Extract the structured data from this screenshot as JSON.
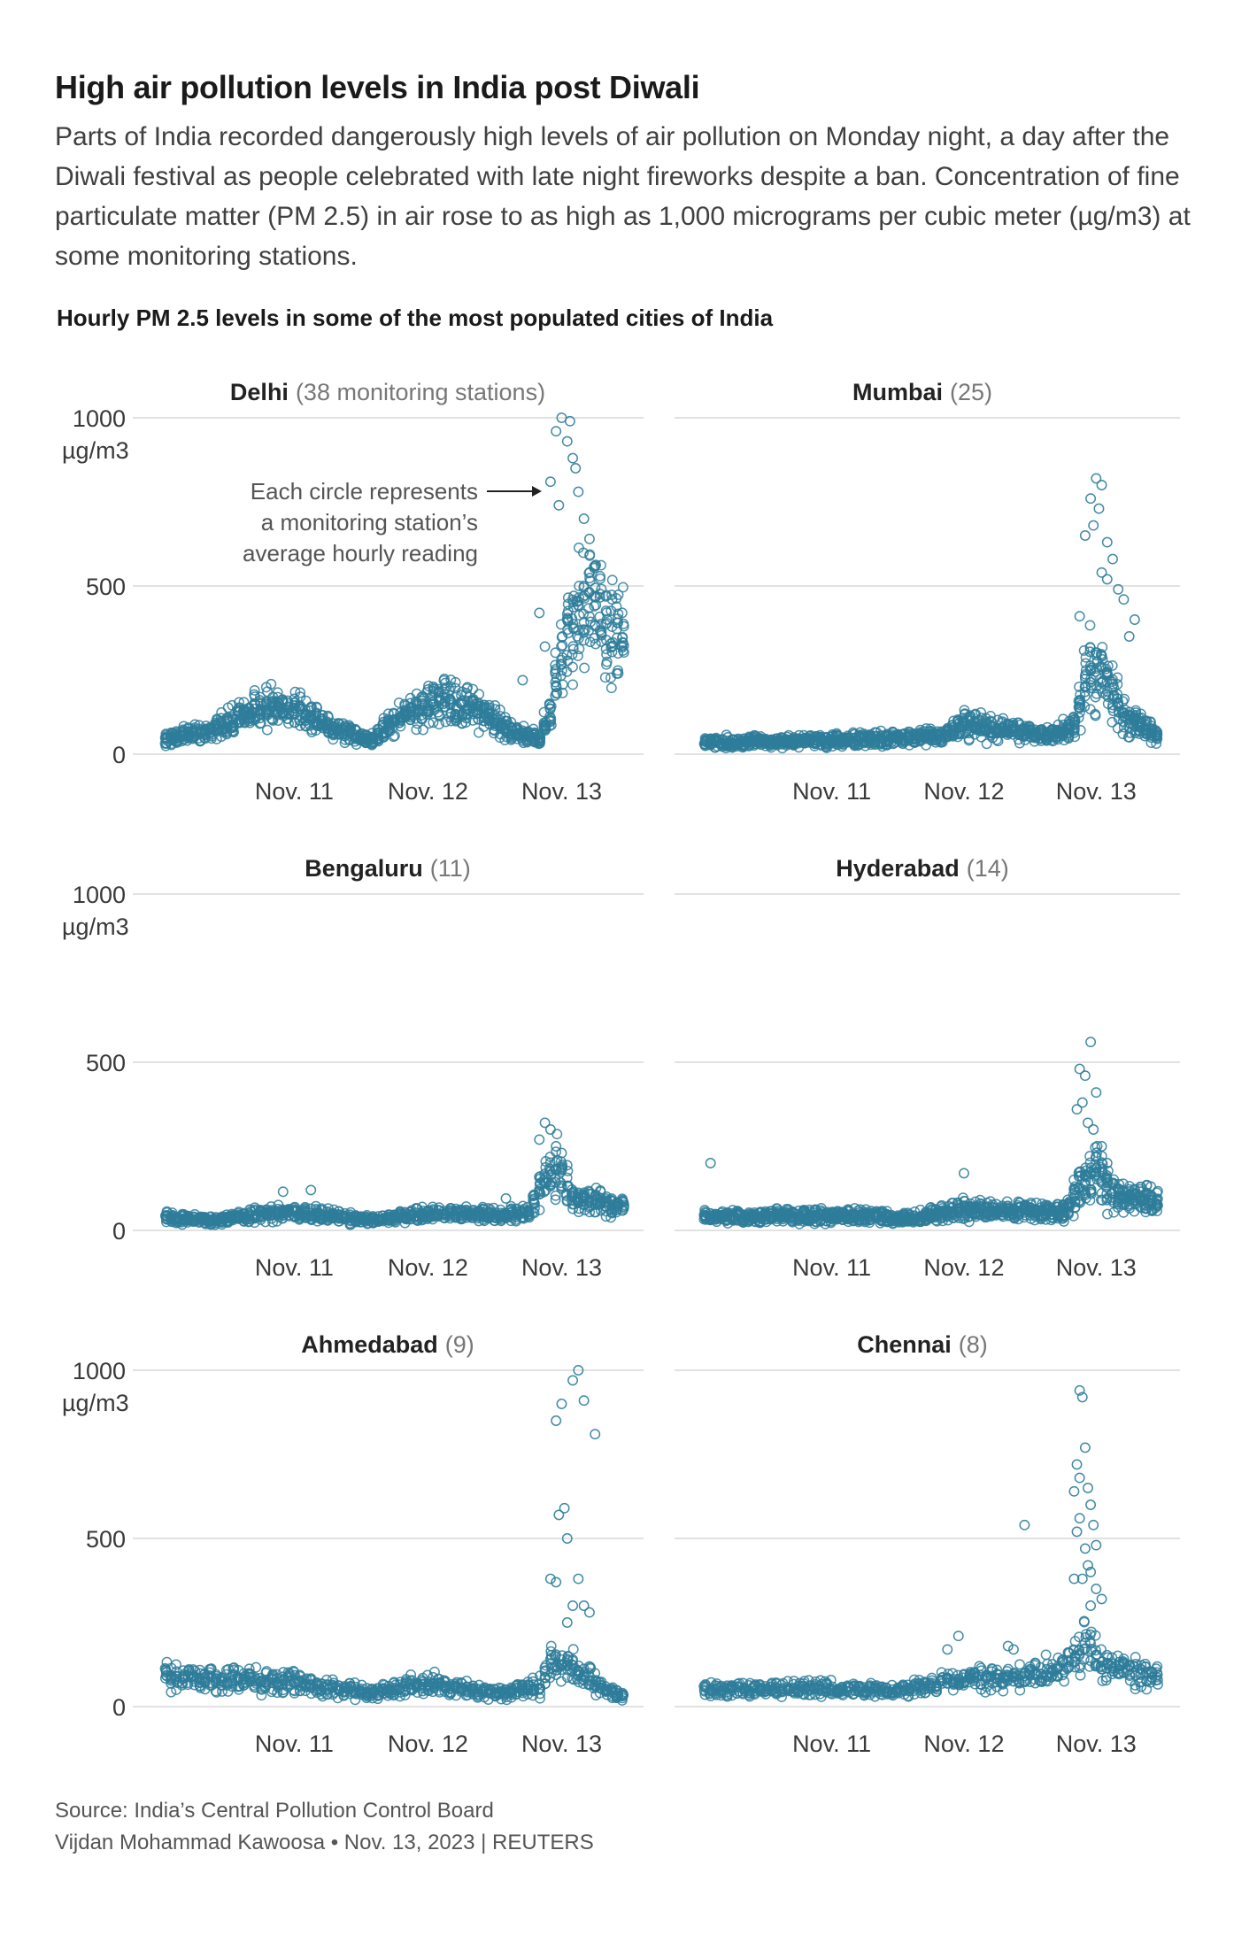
{
  "headline": "High air pollution levels in India post Diwali",
  "dek": "Parts of India recorded dangerously high levels of air pollution on Monday night, a day after the Diwali festival as people celebrated with late night fireworks despite a ban. Concentration of fine particulate matter (PM 2.5) in air rose to as high as 1,000 micrograms per cubic meter (µg/m3) at some monitoring stations.",
  "chart_title": "Hourly PM 2.5 levels in some of the most populated cities of India",
  "source": "Source: India’s Central Pollution Control Board",
  "credit": "Vijdan Mohammad Kawoosa • Nov. 13, 2023 | REUTERS",
  "colors": {
    "dot": "#2e7d9a",
    "grid": "#d9d9d9",
    "text": "#222222",
    "muted": "#777777"
  },
  "annotation": [
    "Each circle represents",
    "a monitoring station’s",
    "average hourly reading"
  ],
  "chart_data": [
    {
      "type": "scatter",
      "city": "Delhi",
      "subtitle": "(38 monitoring stations)",
      "stations": 38,
      "ylim": [
        0,
        1000
      ],
      "y_ticks": [
        0,
        500,
        1000
      ],
      "y_unit": "µg/m3",
      "x_ticks": [
        "Nov. 11",
        "Nov. 12",
        "Nov. 13"
      ],
      "xlabel": "",
      "ylabel": "µg/m3",
      "x_range_hours": [
        -25,
        60
      ],
      "tick_hours": [
        0,
        24,
        48
      ],
      "baseline": [
        [
          -23,
          45
        ],
        [
          -15,
          70
        ],
        [
          -5,
          140
        ],
        [
          2,
          120
        ],
        [
          8,
          70
        ],
        [
          14,
          45
        ],
        [
          20,
          120
        ],
        [
          27,
          160
        ],
        [
          33,
          130
        ],
        [
          40,
          60
        ],
        [
          44,
          45
        ],
        [
          46,
          120
        ],
        [
          48,
          310
        ],
        [
          52,
          450
        ],
        [
          56,
          390
        ],
        [
          59,
          340
        ]
      ],
      "spread": 0.55,
      "extremes": [
        [
          46,
          810
        ],
        [
          47,
          960
        ],
        [
          48,
          1000
        ],
        [
          49,
          930
        ],
        [
          50,
          880
        ],
        [
          51,
          780
        ],
        [
          52,
          700
        ],
        [
          53,
          640
        ],
        [
          54,
          560
        ],
        [
          47.5,
          740
        ],
        [
          49.5,
          990
        ],
        [
          50.5,
          850
        ],
        [
          44,
          420
        ],
        [
          45,
          320
        ],
        [
          41,
          220
        ]
      ]
    },
    {
      "type": "scatter",
      "city": "Mumbai",
      "subtitle": "(25)",
      "stations": 25,
      "ylim": [
        0,
        1000
      ],
      "y_ticks": [
        0,
        500,
        1000
      ],
      "y_unit": "µg/m3",
      "x_ticks": [
        "Nov. 11",
        "Nov. 12",
        "Nov. 13"
      ],
      "xlabel": "",
      "ylabel": "µg/m3",
      "x_range_hours": [
        -25,
        60
      ],
      "tick_hours": [
        0,
        24,
        48
      ],
      "baseline": [
        [
          -23,
          35
        ],
        [
          0,
          40
        ],
        [
          20,
          55
        ],
        [
          24,
          95
        ],
        [
          30,
          75
        ],
        [
          40,
          55
        ],
        [
          44,
          90
        ],
        [
          47,
          260
        ],
        [
          50,
          230
        ],
        [
          53,
          110
        ],
        [
          59,
          60
        ]
      ],
      "spread": 0.6,
      "extremes": [
        [
          48,
          820
        ],
        [
          49,
          800
        ],
        [
          47,
          760
        ],
        [
          48.5,
          730
        ],
        [
          47.5,
          680
        ],
        [
          46,
          650
        ],
        [
          50,
          630
        ],
        [
          51,
          580
        ],
        [
          52,
          490
        ],
        [
          53,
          460
        ],
        [
          55,
          400
        ],
        [
          49,
          540
        ],
        [
          50,
          520
        ],
        [
          45,
          410
        ],
        [
          54,
          350
        ]
      ]
    },
    {
      "type": "scatter",
      "city": "Bengaluru",
      "subtitle": "(11)",
      "stations": 11,
      "ylim": [
        0,
        1000
      ],
      "y_ticks": [
        0,
        500,
        1000
      ],
      "y_unit": "µg/m3",
      "x_ticks": [
        "Nov. 11",
        "Nov. 12",
        "Nov. 13"
      ],
      "xlabel": "",
      "ylabel": "µg/m3",
      "x_range_hours": [
        -25,
        60
      ],
      "tick_hours": [
        0,
        24,
        48
      ],
      "baseline": [
        [
          -23,
          40
        ],
        [
          -15,
          30
        ],
        [
          0,
          55
        ],
        [
          8,
          40
        ],
        [
          14,
          30
        ],
        [
          24,
          50
        ],
        [
          36,
          45
        ],
        [
          42,
          50
        ],
        [
          45,
          150
        ],
        [
          47,
          200
        ],
        [
          50,
          90
        ],
        [
          59,
          70
        ]
      ],
      "spread": 0.6,
      "extremes": [
        [
          45,
          320
        ],
        [
          46,
          300
        ],
        [
          44,
          270
        ],
        [
          47,
          250
        ],
        [
          48,
          230
        ],
        [
          -2,
          115
        ],
        [
          3,
          120
        ],
        [
          38,
          95
        ]
      ]
    },
    {
      "type": "scatter",
      "city": "Hyderabad",
      "subtitle": "(14)",
      "stations": 14,
      "ylim": [
        0,
        1000
      ],
      "y_ticks": [
        0,
        500,
        1000
      ],
      "y_unit": "µg/m3",
      "x_ticks": [
        "Nov. 11",
        "Nov. 12",
        "Nov. 13"
      ],
      "xlabel": "",
      "ylabel": "µg/m3",
      "x_range_hours": [
        -25,
        60
      ],
      "tick_hours": [
        0,
        24,
        48
      ],
      "baseline": [
        [
          -23,
          40
        ],
        [
          0,
          45
        ],
        [
          14,
          35
        ],
        [
          24,
          60
        ],
        [
          36,
          55
        ],
        [
          42,
          50
        ],
        [
          45,
          120
        ],
        [
          48,
          180
        ],
        [
          52,
          100
        ],
        [
          59,
          90
        ]
      ],
      "spread": 0.65,
      "extremes": [
        [
          -22,
          200
        ],
        [
          47,
          560
        ],
        [
          45,
          480
        ],
        [
          46,
          460
        ],
        [
          48,
          410
        ],
        [
          45.5,
          380
        ],
        [
          44.5,
          360
        ],
        [
          46.5,
          320
        ],
        [
          47.5,
          300
        ],
        [
          24,
          170
        ],
        [
          49,
          250
        ],
        [
          50,
          200
        ]
      ]
    },
    {
      "type": "scatter",
      "city": "Ahmedabad",
      "subtitle": "(9)",
      "stations": 9,
      "ylim": [
        0,
        1000
      ],
      "y_ticks": [
        0,
        500,
        1000
      ],
      "y_unit": "µg/m3",
      "x_ticks": [
        "Nov. 11",
        "Nov. 12",
        "Nov. 13"
      ],
      "xlabel": "",
      "ylabel": "µg/m3",
      "x_range_hours": [
        -25,
        60
      ],
      "tick_hours": [
        0,
        24,
        48
      ],
      "baseline": [
        [
          -23,
          90
        ],
        [
          -10,
          80
        ],
        [
          0,
          70
        ],
        [
          14,
          40
        ],
        [
          24,
          70
        ],
        [
          36,
          40
        ],
        [
          44,
          60
        ],
        [
          46,
          130
        ],
        [
          50,
          110
        ],
        [
          55,
          60
        ],
        [
          59,
          30
        ]
      ],
      "spread": 0.6,
      "extremes": [
        [
          51,
          1000
        ],
        [
          50,
          970
        ],
        [
          52,
          910
        ],
        [
          48,
          900
        ],
        [
          47,
          850
        ],
        [
          54,
          810
        ],
        [
          48.5,
          590
        ],
        [
          47.5,
          570
        ],
        [
          49,
          500
        ],
        [
          46,
          380
        ],
        [
          47,
          370
        ],
        [
          51,
          380
        ],
        [
          50,
          300
        ],
        [
          52,
          300
        ],
        [
          53,
          280
        ],
        [
          49,
          250
        ]
      ]
    },
    {
      "type": "scatter",
      "city": "Chennai",
      "subtitle": "(8)",
      "stations": 8,
      "ylim": [
        0,
        1000
      ],
      "y_ticks": [
        0,
        500,
        1000
      ],
      "y_unit": "µg/m3",
      "x_ticks": [
        "Nov. 11",
        "Nov. 12",
        "Nov. 13"
      ],
      "xlabel": "",
      "ylabel": "µg/m3",
      "x_range_hours": [
        -25,
        60
      ],
      "tick_hours": [
        0,
        24,
        48
      ],
      "baseline": [
        [
          -23,
          50
        ],
        [
          0,
          55
        ],
        [
          12,
          45
        ],
        [
          24,
          80
        ],
        [
          36,
          90
        ],
        [
          40,
          100
        ],
        [
          43,
          130
        ],
        [
          46,
          180
        ],
        [
          50,
          130
        ],
        [
          55,
          100
        ],
        [
          59,
          90
        ]
      ],
      "spread": 0.55,
      "extremes": [
        [
          45,
          940
        ],
        [
          45.5,
          920
        ],
        [
          46,
          770
        ],
        [
          44.5,
          720
        ],
        [
          45,
          680
        ],
        [
          46.5,
          650
        ],
        [
          44,
          640
        ],
        [
          47,
          600
        ],
        [
          45,
          560
        ],
        [
          47.5,
          540
        ],
        [
          44.5,
          520
        ],
        [
          46,
          470
        ],
        [
          48,
          480
        ],
        [
          46.5,
          420
        ],
        [
          47,
          400
        ],
        [
          45.5,
          380
        ],
        [
          48,
          350
        ],
        [
          44,
          380
        ],
        [
          49,
          320
        ],
        [
          47,
          300
        ],
        [
          35,
          540
        ],
        [
          23,
          210
        ],
        [
          21,
          170
        ],
        [
          32,
          180
        ],
        [
          33,
          170
        ]
      ]
    }
  ]
}
